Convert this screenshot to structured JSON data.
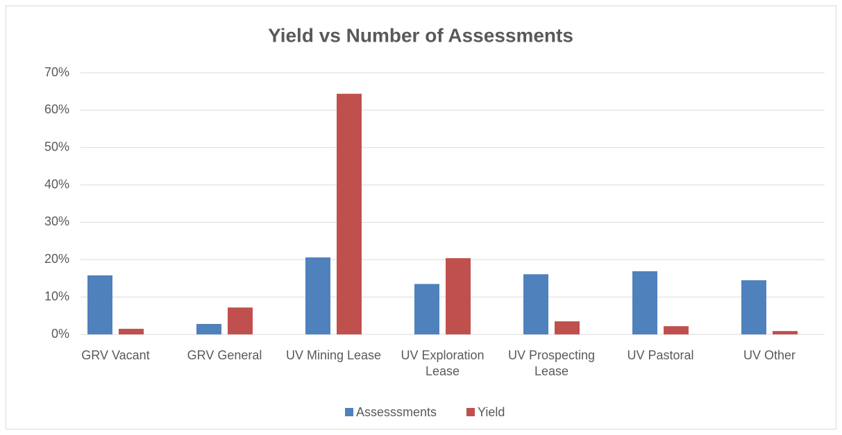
{
  "chart_data": {
    "type": "bar",
    "title": "Yield vs Number of Assessments",
    "categories": [
      "GRV Vacant",
      "GRV General",
      "UV Mining Lease",
      "UV Exploration Lease",
      "UV Prospecting Lease",
      "UV Pastoral",
      "UV Other"
    ],
    "series": [
      {
        "name": "Assesssments",
        "color": "#4f81bd",
        "values": [
          15.8,
          2.8,
          20.6,
          13.5,
          16.1,
          16.9,
          14.5
        ]
      },
      {
        "name": "Yield",
        "color": "#c0504d",
        "values": [
          1.5,
          7.2,
          64.4,
          20.4,
          3.5,
          2.2,
          0.9
        ]
      }
    ],
    "ylim": [
      0,
      70
    ],
    "yticks": [
      {
        "value": 0,
        "label": "0%"
      },
      {
        "value": 10,
        "label": "10%"
      },
      {
        "value": 20,
        "label": "20%"
      },
      {
        "value": 30,
        "label": "30%"
      },
      {
        "value": 40,
        "label": "40%"
      },
      {
        "value": 50,
        "label": "50%"
      },
      {
        "value": 60,
        "label": "60%"
      },
      {
        "value": 70,
        "label": "70%"
      }
    ],
    "grid": true,
    "legend": "bottom"
  }
}
